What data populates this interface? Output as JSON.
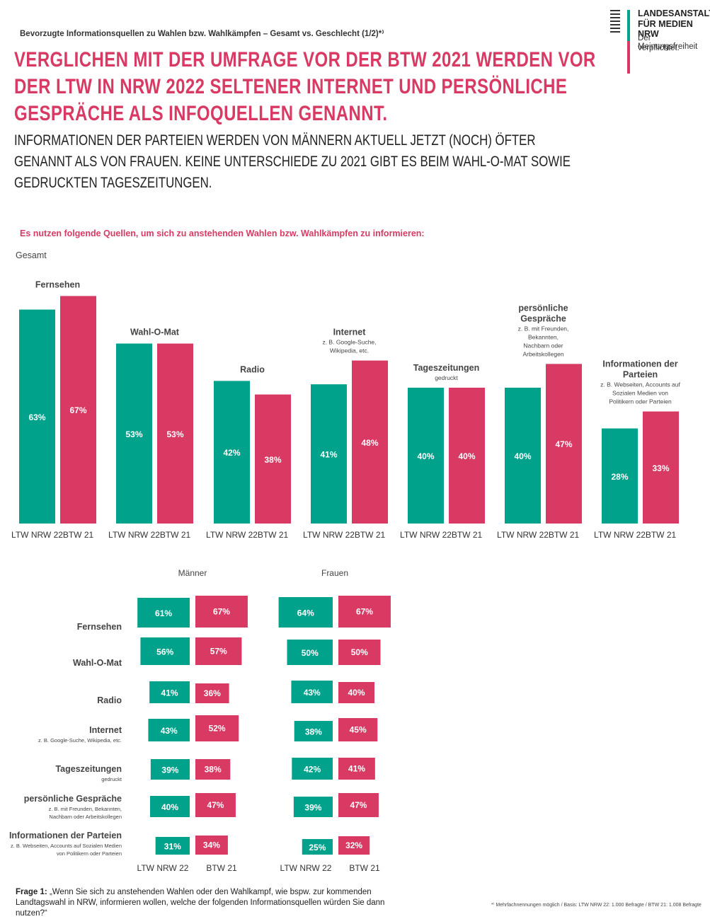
{
  "header": {
    "kicker": "Bevorzugte Informationsquellen zu Wahlen bzw. Wahlkämpfen – Gesamt vs. Geschlecht (1/2)*⁾",
    "headline": "VERGLICHEN MIT DER UMFRAGE VOR DER BTW 2021 WERDEN VOR DER LTW IN NRW 2022 SELTENER INTERNET UND PERSÖNLICHE GESPRÄCHE ALS INFOQUELLEN GENANNT.",
    "subhead": "INFORMATIONEN DER PARTEIEN WERDEN VON MÄNNERN AKTUELL JETZT (NOCH) ÖFTER GENANNT ALS VON FRAUEN. KEINE UNTERSCHIEDE ZU 2021 GIBT ES BEIM WAHL-O-MAT SOWIE GEDRUCKTEN TAGESZEITUNGEN."
  },
  "logo": {
    "title_line1": "LANDESANSTALT",
    "title_line2": "FÜR MEDIEN NRW",
    "tagline_line1": "Der Meinungsfreiheit",
    "tagline_line2": "verpflichtet."
  },
  "question_intro": "Es nutzen folgende Quellen, um sich zu anstehenden Wahlen bzw. Wahlkämpfen zu informieren:",
  "gesamt_label": "Gesamt",
  "colors": {
    "ltw": "#00a28c",
    "btw": "#d93a63",
    "text_pink": "#d93a63"
  },
  "chart_data": [
    {
      "type": "bar",
      "title": "Gesamt",
      "series_labels": [
        "LTW NRW 22",
        "BTW 21"
      ],
      "categories": [
        {
          "name": "Fernsehen",
          "sub": []
        },
        {
          "name": "Wahl-O-Mat",
          "sub": []
        },
        {
          "name": "Radio",
          "sub": []
        },
        {
          "name": "Internet",
          "sub": [
            "z. B. Google-Suche,",
            "Wikipedia, etc."
          ]
        },
        {
          "name": "Tageszeitungen",
          "sub": [
            "gedruckt"
          ]
        },
        {
          "name": "persönliche Gespräche",
          "name_lines": [
            "persönliche",
            "Gespräche"
          ],
          "sub": [
            "z. B. mit Freunden,",
            "Bekannten,",
            "Nachbarn oder",
            "Arbeitskollegen"
          ]
        },
        {
          "name": "Informationen der Parteien",
          "name_lines": [
            "Informationen der",
            "Parteien"
          ],
          "sub": [
            "z. B. Webseiten, Accounts auf",
            "Sozialen Medien von",
            "Politikern oder Parteien"
          ]
        }
      ],
      "series": [
        {
          "name": "LTW NRW 22",
          "values": [
            63,
            53,
            42,
            41,
            40,
            40,
            28
          ]
        },
        {
          "name": "BTW 21",
          "values": [
            67,
            53,
            38,
            48,
            40,
            47,
            33
          ]
        }
      ],
      "unit": "%"
    },
    {
      "type": "bar",
      "title": "Männer",
      "series_labels": [
        "LTW NRW 22",
        "BTW 21"
      ],
      "categories": [
        "Fernsehen",
        "Wahl-O-Mat",
        "Radio",
        "Internet",
        "Tageszeitungen",
        "persönliche Gespräche",
        "Informationen der Parteien"
      ],
      "series": [
        {
          "name": "LTW NRW 22",
          "values": [
            61,
            56,
            41,
            43,
            39,
            40,
            31
          ]
        },
        {
          "name": "BTW 21",
          "values": [
            67,
            57,
            36,
            52,
            38,
            47,
            34
          ]
        }
      ],
      "unit": "%"
    },
    {
      "type": "bar",
      "title": "Frauen",
      "series_labels": [
        "LTW NRW 22",
        "BTW 21"
      ],
      "categories": [
        "Fernsehen",
        "Wahl-O-Mat",
        "Radio",
        "Internet",
        "Tageszeitungen",
        "persönliche Gespräche",
        "Informationen der Parteien"
      ],
      "series": [
        {
          "name": "LTW NRW 22",
          "values": [
            64,
            50,
            43,
            38,
            42,
            39,
            25
          ]
        },
        {
          "name": "BTW 21",
          "values": [
            67,
            50,
            40,
            45,
            41,
            47,
            32
          ]
        }
      ],
      "unit": "%"
    }
  ],
  "gender_row_labels": [
    {
      "name": "Fernsehen",
      "sub": []
    },
    {
      "name": "Wahl-O-Mat",
      "sub": []
    },
    {
      "name": "Radio",
      "sub": []
    },
    {
      "name": "Internet",
      "sub": [
        "z. B. Google-Suche, Wikipedia, etc."
      ]
    },
    {
      "name": "Tageszeitungen",
      "sub": [
        "gedruckt"
      ]
    },
    {
      "name": "persönliche Gespräche",
      "sub": [
        "z. B. mit Freunden, Bekannten,",
        "Nachbarn oder Arbeitskollegen"
      ]
    },
    {
      "name": "Informationen der Parteien",
      "sub": [
        "z. B. Webseiten, Accounts auf Sozialen Medien",
        "von Politikern oder Parteien"
      ]
    }
  ],
  "footer": {
    "question_label": "Frage 1:",
    "question_text": "„Wenn Sie sich zu anstehenden Wahlen oder den Wahlkampf, wie bspw. zur kommenden Landtagswahl in NRW, informieren wollen, welche der folgenden Informationsquellen würden Sie dann nutzen?“",
    "footnote": "*⁾ Mehrfachnennungen möglich / Basis: LTW NRW 22: 1.000 Befragte / BTW 21: 1.008 Befragte"
  }
}
